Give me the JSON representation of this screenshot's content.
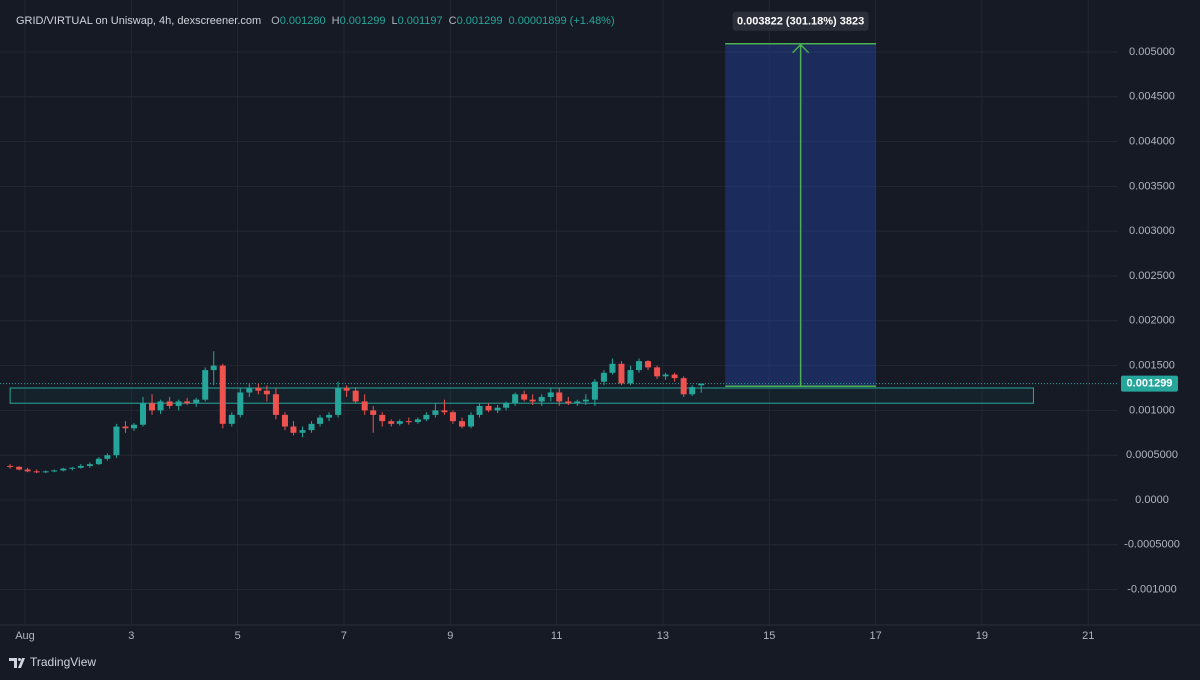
{
  "chart_data": {
    "type": "candlestick",
    "title": "GRID/VIRTUAL on Uniswap, 4h, dexscreener.com",
    "ohlc_legend": [
      {
        "label": "O",
        "text": "0.001280"
      },
      {
        "label": "H",
        "text": "0.001299"
      },
      {
        "label": "L",
        "text": "0.001197"
      },
      {
        "label": "C",
        "text": "0.001299"
      }
    ],
    "change": "0.00001899 (+1.48%)",
    "up_color": "#26a69a",
    "down_color": "#ef5350",
    "grid": true,
    "x": [
      0.72,
      0.89,
      1.05,
      1.22,
      1.39,
      1.55,
      1.72,
      1.89,
      2.05,
      2.22,
      2.39,
      2.55,
      2.72,
      2.89,
      3.05,
      3.22,
      3.39,
      3.55,
      3.72,
      3.89,
      4.05,
      4.22,
      4.39,
      4.55,
      4.72,
      4.89,
      5.05,
      5.22,
      5.39,
      5.55,
      5.72,
      5.89,
      6.05,
      6.22,
      6.39,
      6.55,
      6.72,
      6.89,
      7.05,
      7.22,
      7.39,
      7.55,
      7.72,
      7.89,
      8.05,
      8.22,
      8.39,
      8.55,
      8.72,
      8.89,
      9.05,
      9.22,
      9.39,
      9.55,
      9.72,
      9.89,
      10.05,
      10.22,
      10.39,
      10.55,
      10.72,
      10.89,
      11.05,
      11.22,
      11.39,
      11.55,
      11.72,
      11.89,
      12.05,
      12.22,
      12.39,
      12.55,
      12.72,
      12.89,
      13.05,
      13.22,
      13.39,
      13.55,
      13.72
    ],
    "open": [
      0.00038,
      0.00037,
      0.00034,
      0.00032,
      0.00031,
      0.00032,
      0.00033,
      0.00035,
      0.00036,
      0.00038,
      0.0004,
      0.00046,
      0.0005,
      0.00082,
      0.0008,
      0.00084,
      0.00108,
      0.001,
      0.0011,
      0.00105,
      0.0011,
      0.00108,
      0.00112,
      0.00145,
      0.0015,
      0.00085,
      0.00095,
      0.0012,
      0.00125,
      0.00122,
      0.00118,
      0.00095,
      0.00082,
      0.00075,
      0.00078,
      0.00085,
      0.00092,
      0.00095,
      0.00125,
      0.00122,
      0.0011,
      0.001,
      0.00095,
      0.00088,
      0.00085,
      0.00088,
      0.00087,
      0.0009,
      0.00095,
      0.001,
      0.00098,
      0.00088,
      0.00082,
      0.00095,
      0.00105,
      0.001,
      0.00103,
      0.00108,
      0.00118,
      0.00112,
      0.0011,
      0.00115,
      0.0012,
      0.0011,
      0.00108,
      0.0011,
      0.00112,
      0.00132,
      0.00142,
      0.00152,
      0.0013,
      0.00145,
      0.00155,
      0.00148,
      0.00138,
      0.0014,
      0.00136,
      0.00118,
      0.00128
    ],
    "high": [
      0.0004,
      0.00038,
      0.00036,
      0.00034,
      0.00033,
      0.00034,
      0.00036,
      0.00037,
      0.0004,
      0.00042,
      0.00048,
      0.00052,
      0.00085,
      0.00088,
      0.00086,
      0.00115,
      0.00118,
      0.00112,
      0.00115,
      0.00112,
      0.00114,
      0.00114,
      0.00148,
      0.00166,
      0.00152,
      0.00098,
      0.00125,
      0.0013,
      0.0013,
      0.00128,
      0.00125,
      0.00098,
      0.00088,
      0.00082,
      0.00088,
      0.00095,
      0.00098,
      0.00132,
      0.00128,
      0.00126,
      0.00118,
      0.00105,
      0.00098,
      0.0009,
      0.0009,
      0.00092,
      0.00092,
      0.00098,
      0.00108,
      0.00112,
      0.001,
      0.00092,
      0.00098,
      0.00108,
      0.00108,
      0.00106,
      0.0011,
      0.0012,
      0.00122,
      0.00118,
      0.00118,
      0.00125,
      0.00125,
      0.00115,
      0.00112,
      0.00118,
      0.00135,
      0.00145,
      0.00158,
      0.00155,
      0.0015,
      0.00158,
      0.00156,
      0.0015,
      0.00142,
      0.00142,
      0.00138,
      0.00128,
      0.001299
    ],
    "low": [
      0.00035,
      0.00033,
      0.00031,
      0.0003,
      0.0003,
      0.00031,
      0.00032,
      0.00033,
      0.00035,
      0.00036,
      0.00039,
      0.00044,
      0.00047,
      0.00075,
      0.00077,
      0.00082,
      0.00095,
      0.00096,
      0.00102,
      0.001,
      0.00106,
      0.00104,
      0.0011,
      0.00128,
      0.0008,
      0.00082,
      0.00092,
      0.00115,
      0.00118,
      0.0011,
      0.0009,
      0.00078,
      0.00072,
      0.0007,
      0.00075,
      0.00082,
      0.00088,
      0.00092,
      0.00115,
      0.00108,
      0.00095,
      0.00075,
      0.00082,
      0.00082,
      0.00083,
      0.00084,
      0.00085,
      0.00088,
      0.00092,
      0.00095,
      0.00085,
      0.0008,
      0.0008,
      0.00092,
      0.00098,
      0.00097,
      0.001,
      0.00105,
      0.0011,
      0.00106,
      0.00105,
      0.0011,
      0.00105,
      0.00106,
      0.00105,
      0.00106,
      0.00105,
      0.00128,
      0.0014,
      0.00128,
      0.00128,
      0.00142,
      0.00145,
      0.00135,
      0.00134,
      0.00132,
      0.00115,
      0.00116,
      0.001197
    ],
    "close": [
      0.00037,
      0.00034,
      0.00032,
      0.00031,
      0.00032,
      0.00033,
      0.00035,
      0.00036,
      0.00038,
      0.0004,
      0.00046,
      0.0005,
      0.00082,
      0.0008,
      0.00084,
      0.00108,
      0.001,
      0.0011,
      0.00105,
      0.0011,
      0.00108,
      0.00112,
      0.00145,
      0.0015,
      0.00085,
      0.00095,
      0.0012,
      0.00125,
      0.00122,
      0.00118,
      0.00095,
      0.00082,
      0.00075,
      0.00078,
      0.00085,
      0.00092,
      0.00095,
      0.00125,
      0.00122,
      0.0011,
      0.001,
      0.00095,
      0.00088,
      0.00085,
      0.00088,
      0.00087,
      0.0009,
      0.00095,
      0.001,
      0.00098,
      0.00088,
      0.00082,
      0.00095,
      0.00105,
      0.001,
      0.00103,
      0.00108,
      0.00118,
      0.00112,
      0.0011,
      0.00115,
      0.0012,
      0.0011,
      0.00108,
      0.0011,
      0.00112,
      0.00132,
      0.00142,
      0.00152,
      0.0013,
      0.00145,
      0.00155,
      0.00148,
      0.00138,
      0.0014,
      0.00136,
      0.00118,
      0.00126,
      0.001299
    ],
    "xlim": [
      0.53,
      21.56
    ],
    "xticks": [
      {
        "value": 1,
        "label": "Aug"
      },
      3,
      5,
      7,
      9,
      11,
      13,
      15,
      17,
      19,
      21
    ],
    "ylim": [
      -0.001395,
      0.00558
    ],
    "yticks": [
      {
        "value": 0.005,
        "label": "0.005000"
      },
      {
        "value": 0.0045,
        "label": "0.004500"
      },
      {
        "value": 0.004,
        "label": "0.004000"
      },
      {
        "value": 0.0035,
        "label": "0.003500"
      },
      {
        "value": 0.003,
        "label": "0.003000"
      },
      {
        "value": 0.0025,
        "label": "0.002500"
      },
      {
        "value": 0.002,
        "label": "0.002000"
      },
      {
        "value": 0.0015,
        "label": "0.001500"
      },
      {
        "value": 0.001,
        "label": "0.001000"
      },
      {
        "value": 0.0005,
        "label": "0.0005000"
      },
      {
        "value": 0,
        "label": "0.0000"
      },
      {
        "value": -0.0005,
        "label": "-0.0005000"
      },
      {
        "value": -0.001,
        "label": "-0.001000"
      }
    ],
    "last_price": {
      "value": 0.001299,
      "label": "0.001299"
    },
    "zone": {
      "x": [
        0.72,
        19.97
      ],
      "y": [
        0.00108,
        0.00125
      ]
    },
    "measure": {
      "x": [
        14.17,
        17.01
      ],
      "from": 0.00127,
      "to": 0.005092,
      "label": "0.003822 (301.18%) 3823"
    },
    "footer": "TradingView"
  }
}
